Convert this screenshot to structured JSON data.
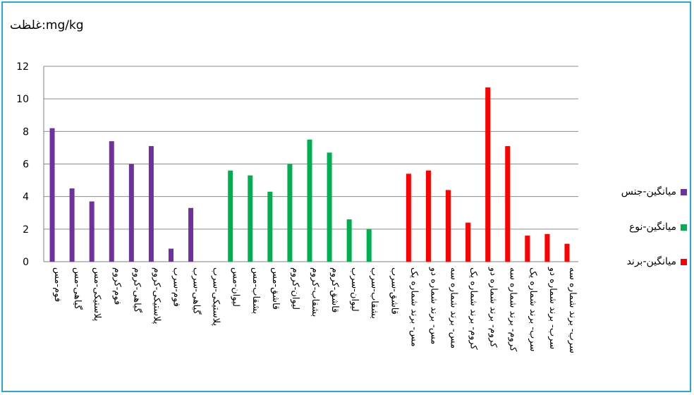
{
  "chart_data": {
    "type": "bar",
    "title": "غلظت:mg/kg",
    "xlabel": "",
    "ylabel": "",
    "ylim": [
      0,
      12
    ],
    "yticks": [
      0,
      2,
      4,
      6,
      8,
      10,
      12
    ],
    "grid": true,
    "legend_position": "right",
    "categories": [
      "فوم-مس",
      "گیاهی-مس",
      "پلاستیکی-مس",
      "فوم-کروم",
      "گیاهی-کروم",
      "پلاستیکی-کروم",
      "فوم-سرب",
      "گیاهی-سرب",
      "پلاستیکی-سرب",
      "لیوان-مس",
      "بشقاب-مس",
      "قاشق-مس",
      "لیوان-کروم",
      "بشقاب-کروم",
      "قاشق-کروم",
      "لیوان-سرب",
      "بشقاب-سرب",
      "قاشق-سرب",
      "مس- برند شماره یک",
      "مس- برند شماره دو",
      "مس- برند شماره سه",
      "کروم- برند شماره یک",
      "کروم- برند شماره دو",
      "کروم- برند شماره سه",
      "سرب- برند شماره یک",
      "سرب- برند شماره دو",
      "سرب- برند شماره سه"
    ],
    "series": [
      {
        "name": "میانگین-جنس",
        "color": "#7030a0",
        "values": [
          8.2,
          4.5,
          3.7,
          7.4,
          6.0,
          7.1,
          0.8,
          3.3,
          null,
          null,
          null,
          null,
          null,
          null,
          null,
          null,
          null,
          null,
          null,
          null,
          null,
          null,
          null,
          null,
          null,
          null,
          null
        ]
      },
      {
        "name": "میانگین-نوع",
        "color": "#00b050",
        "values": [
          null,
          null,
          null,
          null,
          null,
          null,
          null,
          null,
          null,
          5.6,
          5.3,
          4.3,
          6.0,
          7.5,
          6.7,
          2.6,
          2.0,
          null,
          null,
          null,
          null,
          null,
          null,
          null,
          null,
          null,
          null
        ]
      },
      {
        "name": "میانگین-برند",
        "color": "#ff0000",
        "values": [
          null,
          null,
          null,
          null,
          null,
          null,
          null,
          null,
          null,
          null,
          null,
          null,
          null,
          null,
          null,
          null,
          null,
          null,
          5.4,
          5.6,
          4.4,
          2.4,
          10.7,
          7.1,
          1.6,
          1.7,
          1.1
        ]
      }
    ]
  }
}
